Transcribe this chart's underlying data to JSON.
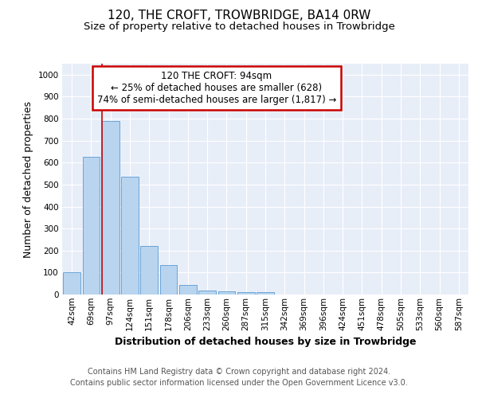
{
  "title1": "120, THE CROFT, TROWBRIDGE, BA14 0RW",
  "title2": "Size of property relative to detached houses in Trowbridge",
  "xlabel": "Distribution of detached houses by size in Trowbridge",
  "ylabel": "Number of detached properties",
  "footer_line1": "Contains HM Land Registry data © Crown copyright and database right 2024.",
  "footer_line2": "Contains public sector information licensed under the Open Government Licence v3.0.",
  "bar_labels": [
    "42sqm",
    "69sqm",
    "97sqm",
    "124sqm",
    "151sqm",
    "178sqm",
    "206sqm",
    "233sqm",
    "260sqm",
    "287sqm",
    "315sqm",
    "342sqm",
    "369sqm",
    "396sqm",
    "424sqm",
    "451sqm",
    "478sqm",
    "505sqm",
    "533sqm",
    "560sqm",
    "587sqm"
  ],
  "bar_values": [
    100,
    625,
    790,
    535,
    220,
    135,
    45,
    18,
    13,
    10,
    10,
    0,
    0,
    0,
    0,
    0,
    0,
    0,
    0,
    0,
    0
  ],
  "bar_color": "#b8d4ee",
  "bar_edge_color": "#5b9bd5",
  "highlight_line_color": "#cc0000",
  "annotation_text_line1": "120 THE CROFT: 94sqm",
  "annotation_text_line2": "← 25% of detached houses are smaller (628)",
  "annotation_text_line3": "74% of semi-detached houses are larger (1,817) →",
  "annotation_box_color": "#cc0000",
  "ylim": [
    0,
    1050
  ],
  "yticks": [
    0,
    100,
    200,
    300,
    400,
    500,
    600,
    700,
    800,
    900,
    1000
  ],
  "plot_bg_color": "#e8eef8",
  "fig_bg_color": "#ffffff",
  "grid_color": "#ffffff",
  "title_fontsize": 11,
  "subtitle_fontsize": 9.5,
  "ylabel_fontsize": 9,
  "xlabel_fontsize": 9,
  "tick_fontsize": 7.5,
  "annotation_fontsize": 8.5,
  "footer_fontsize": 7
}
